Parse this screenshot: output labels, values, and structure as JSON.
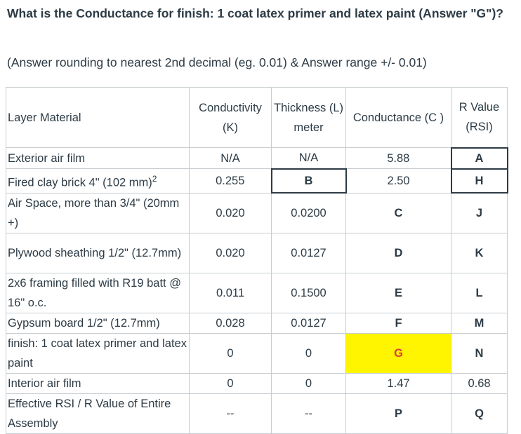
{
  "question": "What is the Conductance for finish: 1 coat latex primer and latex paint (Answer \"G\")?",
  "note": "(Answer rounding to nearest 2nd decimal (eg. 0.01) & Answer range +/- 0.01)",
  "headers": {
    "material": "Layer Material",
    "conductivity": "Conductivity (K)",
    "thickness": "Thickness (L) meter",
    "conductance": "Conductance (C )",
    "rvalue": "R Value (RSI)"
  },
  "rows": [
    {
      "material": "Exterior air film",
      "k": "N/A",
      "l": "N/A",
      "c": "5.88",
      "r": "A"
    },
    {
      "material": "Fired clay brick 4\" (102 mm)",
      "sup": "2",
      "k": "0.255",
      "l": "B",
      "c": "2.50",
      "r": "H"
    },
    {
      "material": "Air Space, more than 3/4\" (20mm +)",
      "k": "0.020",
      "l": "0.0200",
      "c": "C",
      "r": "J"
    },
    {
      "material": "Plywood sheathing 1/2\" (12.7mm)",
      "k": "0.020",
      "l": "0.0127",
      "c": "D",
      "r": "K"
    },
    {
      "material": "2x6 framing filled with R19 batt @ 16\" o.c.",
      "k": "0.011",
      "l": "0.1500",
      "c": "E",
      "r": "L"
    },
    {
      "material": "Gypsum board 1/2\" (12.7mm)",
      "k": "0.028",
      "l": "0.0127",
      "c": "F",
      "r": "M"
    },
    {
      "material": "finish: 1 coat latex primer and latex paint",
      "k": "0",
      "l": "0",
      "c": "G",
      "r": "N"
    },
    {
      "material": "Interior air film",
      "k": "0",
      "l": "0",
      "c": "1.47",
      "r": "0.68"
    },
    {
      "material": "Effective RSI / R Value of Entire Assembly",
      "k": "--",
      "l": "--",
      "c": "P",
      "r": "Q"
    }
  ]
}
